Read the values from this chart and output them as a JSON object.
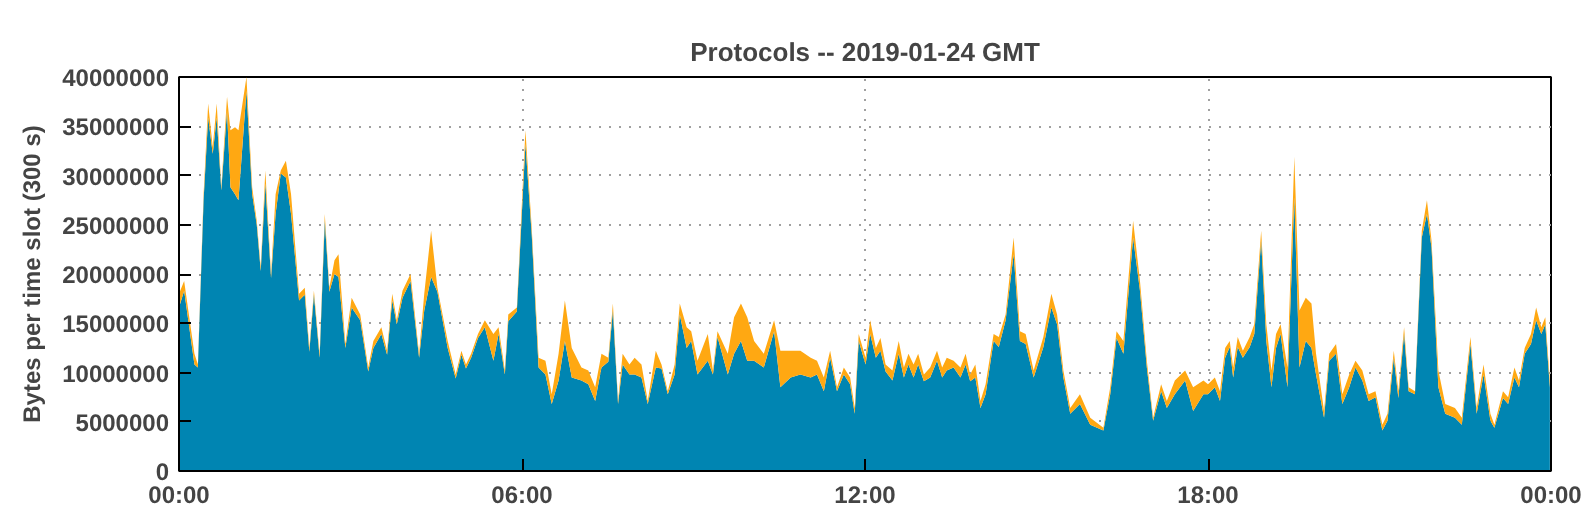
{
  "chart_data": {
    "type": "area",
    "stacked": true,
    "title": "Protocols -- 2019-01-24 GMT",
    "ylabel": "Bytes per time slot (300 s)",
    "x": [
      0.0,
      0.09,
      0.27,
      0.33,
      0.43,
      0.51,
      0.59,
      0.66,
      0.74,
      0.84,
      0.9,
      0.98,
      1.04,
      1.18,
      1.28,
      1.36,
      1.43,
      1.51,
      1.61,
      1.69,
      1.78,
      1.87,
      1.96,
      2.1,
      2.2,
      2.28,
      2.36,
      2.46,
      2.55,
      2.63,
      2.72,
      2.79,
      2.91,
      3.02,
      3.17,
      3.31,
      3.4,
      3.54,
      3.64,
      3.73,
      3.81,
      3.91,
      4.05,
      4.2,
      4.29,
      4.41,
      4.52,
      4.7,
      4.84,
      4.94,
      5.02,
      5.11,
      5.23,
      5.35,
      5.5,
      5.59,
      5.7,
      5.76,
      5.91,
      6.06,
      6.17,
      6.29,
      6.41,
      6.52,
      6.64,
      6.75,
      6.87,
      7.04,
      7.16,
      7.28,
      7.39,
      7.51,
      7.59,
      7.68,
      7.76,
      7.88,
      7.97,
      8.09,
      8.2,
      8.34,
      8.44,
      8.55,
      8.67,
      8.76,
      8.88,
      8.96,
      9.07,
      9.25,
      9.34,
      9.42,
      9.6,
      9.71,
      9.83,
      9.94,
      10.06,
      10.23,
      10.41,
      10.52,
      10.7,
      10.87,
      11.05,
      11.16,
      11.28,
      11.39,
      11.51,
      11.63,
      11.74,
      11.82,
      11.89,
      12.01,
      12.09,
      12.19,
      12.27,
      12.36,
      12.48,
      12.59,
      12.68,
      12.76,
      12.85,
      12.93,
      13.03,
      13.14,
      13.26,
      13.35,
      13.43,
      13.55,
      13.67,
      13.76,
      13.84,
      13.93,
      14.02,
      14.11,
      14.25,
      14.34,
      14.46,
      14.6,
      14.71,
      14.81,
      14.95,
      15.12,
      15.26,
      15.36,
      15.47,
      15.59,
      15.76,
      15.94,
      16.17,
      16.29,
      16.4,
      16.52,
      16.69,
      16.81,
      16.93,
      17.04,
      17.18,
      17.28,
      17.42,
      17.6,
      17.74,
      17.92,
      18.0,
      18.12,
      18.21,
      18.3,
      18.38,
      18.44,
      18.52,
      18.61,
      18.73,
      18.81,
      18.93,
      19.02,
      19.11,
      19.19,
      19.27,
      19.39,
      19.51,
      19.6,
      19.71,
      19.81,
      19.89,
      20.03,
      20.12,
      20.24,
      20.35,
      20.47,
      20.58,
      20.7,
      20.81,
      20.93,
      21.05,
      21.14,
      21.25,
      21.33,
      21.43,
      21.51,
      21.62,
      21.74,
      21.83,
      21.91,
      22.03,
      22.15,
      22.32,
      22.44,
      22.59,
      22.7,
      22.82,
      22.94,
      23.01,
      23.16,
      23.25,
      23.36,
      23.44,
      23.54,
      23.65,
      23.74,
      23.83,
      23.9,
      23.98
    ],
    "series": [
      {
        "color": "#0085b2",
        "values": [
          16600000,
          18300000,
          10800000,
          10500000,
          27500000,
          35900000,
          32200000,
          35900000,
          28500000,
          36600000,
          28800000,
          28100000,
          27500000,
          38600000,
          28100000,
          25000000,
          20300000,
          29200000,
          19600000,
          26100000,
          30200000,
          29800000,
          26100000,
          17300000,
          17900000,
          12100000,
          17900000,
          11500000,
          25400000,
          18200000,
          20000000,
          19700000,
          12500000,
          16600000,
          15300000,
          10100000,
          12500000,
          13900000,
          11800000,
          17300000,
          14900000,
          17600000,
          19300000,
          11500000,
          16300000,
          19700000,
          18200000,
          12500000,
          9400000,
          11800000,
          10400000,
          11500000,
          13500000,
          14600000,
          11200000,
          13900000,
          9800000,
          15200000,
          16200000,
          33200000,
          24000000,
          10500000,
          9800000,
          6800000,
          9200000,
          13200000,
          9500000,
          9200000,
          8800000,
          7100000,
          10500000,
          11100000,
          16300000,
          6800000,
          10800000,
          9800000,
          9800000,
          9500000,
          6800000,
          10500000,
          10400000,
          7800000,
          9800000,
          15900000,
          12500000,
          13200000,
          9800000,
          11200000,
          9800000,
          13600000,
          9800000,
          11900000,
          13200000,
          11200000,
          11200000,
          10500000,
          14200000,
          8500000,
          9500000,
          9800000,
          9500000,
          9800000,
          8100000,
          11500000,
          8100000,
          9800000,
          8800000,
          5800000,
          13200000,
          10800000,
          13900000,
          11500000,
          12200000,
          10100000,
          9200000,
          11900000,
          9500000,
          10800000,
          9500000,
          10800000,
          9100000,
          9500000,
          11200000,
          9500000,
          10200000,
          10500000,
          9500000,
          10800000,
          9100000,
          9500000,
          6400000,
          7800000,
          13200000,
          12600000,
          15300000,
          22000000,
          13200000,
          12900000,
          9500000,
          12600000,
          16600000,
          14900000,
          9500000,
          5800000,
          6800000,
          4700000,
          4100000,
          7800000,
          13500000,
          11900000,
          23700000,
          18300000,
          10500000,
          5100000,
          8100000,
          6400000,
          7800000,
          9200000,
          6100000,
          7800000,
          7800000,
          8500000,
          7100000,
          11500000,
          12600000,
          9500000,
          12600000,
          11500000,
          12600000,
          13900000,
          23400000,
          13200000,
          8500000,
          12500000,
          13900000,
          8500000,
          27800000,
          10500000,
          13200000,
          12500000,
          9800000,
          5400000,
          11200000,
          11900000,
          6800000,
          8500000,
          10500000,
          9200000,
          7100000,
          7500000,
          4100000,
          5100000,
          11500000,
          7400000,
          13900000,
          8100000,
          7800000,
          23700000,
          26100000,
          22700000,
          8500000,
          5800000,
          5400000,
          4700000,
          12900000,
          5800000,
          9800000,
          5100000,
          4400000,
          7400000,
          6800000,
          9500000,
          8500000,
          11900000,
          12900000,
          15300000,
          13900000,
          14900000,
          8500000
        ]
      },
      {
        "color": "#ffa812",
        "values": [
          1400000,
          1000000,
          1100000,
          300000,
          600000,
          1400000,
          700000,
          1400000,
          300000,
          1400000,
          5800000,
          6800000,
          7100000,
          1400000,
          700000,
          400000,
          400000,
          1300000,
          400000,
          2000000,
          300000,
          1700000,
          2000000,
          700000,
          700000,
          400000,
          400000,
          400000,
          700000,
          400000,
          1400000,
          2300000,
          400000,
          1000000,
          600000,
          400000,
          700000,
          700000,
          400000,
          700000,
          400000,
          700000,
          700000,
          400000,
          1700000,
          4700000,
          400000,
          700000,
          400000,
          400000,
          400000,
          400000,
          400000,
          700000,
          2700000,
          700000,
          400000,
          700000,
          400000,
          1400000,
          700000,
          1000000,
          1400000,
          1000000,
          2700000,
          4100000,
          3000000,
          1300000,
          1400000,
          1400000,
          1400000,
          400000,
          700000,
          300000,
          1100000,
          1000000,
          1700000,
          1300000,
          300000,
          1700000,
          400000,
          300000,
          1000000,
          1100000,
          2100000,
          1000000,
          1400000,
          2700000,
          400000,
          600000,
          2100000,
          3700000,
          3800000,
          4400000,
          2000000,
          1400000,
          1100000,
          3700000,
          2700000,
          2400000,
          2000000,
          1400000,
          1400000,
          700000,
          400000,
          700000,
          700000,
          600000,
          700000,
          700000,
          1400000,
          1000000,
          1300000,
          700000,
          1000000,
          1300000,
          1000000,
          1100000,
          1300000,
          1100000,
          700000,
          1000000,
          1000000,
          1000000,
          1300000,
          700000,
          1000000,
          1100000,
          700000,
          1300000,
          700000,
          1000000,
          700000,
          1000000,
          600000,
          1700000,
          1000000,
          1000000,
          700000,
          1000000,
          1400000,
          1000000,
          700000,
          600000,
          1000000,
          700000,
          300000,
          700000,
          700000,
          1300000,
          1700000,
          1000000,
          700000,
          300000,
          700000,
          700000,
          1400000,
          1000000,
          2400000,
          1400000,
          1000000,
          1000000,
          1000000,
          1000000,
          600000,
          1000000,
          1000000,
          700000,
          1000000,
          1000000,
          1000000,
          1700000,
          1700000,
          1400000,
          1000000,
          2000000,
          4100000,
          5800000,
          4400000,
          4500000,
          2100000,
          700000,
          700000,
          1000000,
          1000000,
          1300000,
          700000,
          1000000,
          700000,
          600000,
          600000,
          700000,
          700000,
          700000,
          700000,
          400000,
          300000,
          700000,
          1400000,
          700000,
          1700000,
          1000000,
          1000000,
          700000,
          700000,
          600000,
          1000000,
          700000,
          300000,
          700000,
          700000,
          1000000,
          700000,
          600000,
          1000000,
          1300000,
          700000,
          700000,
          700000
        ]
      }
    ],
    "xlim": [
      0,
      24
    ],
    "xticks": [
      {
        "value": 0,
        "label": "00:00"
      },
      {
        "value": 6,
        "label": "06:00"
      },
      {
        "value": 12,
        "label": "12:00"
      },
      {
        "value": 18,
        "label": "18:00"
      },
      {
        "value": 24,
        "label": "00:00"
      }
    ],
    "ylim": [
      0,
      40000000
    ],
    "yticks": [
      0,
      5000000,
      10000000,
      15000000,
      20000000,
      25000000,
      30000000,
      35000000,
      40000000
    ],
    "grid": true
  }
}
